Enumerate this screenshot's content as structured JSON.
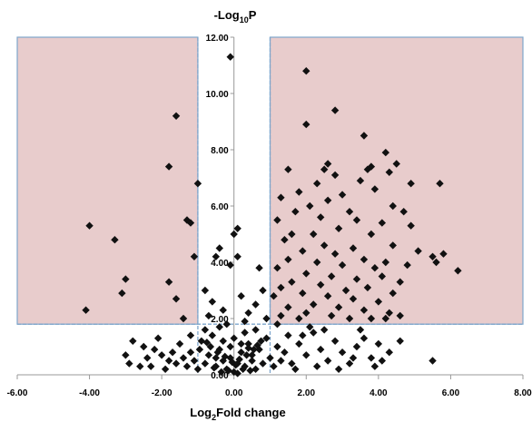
{
  "chart_data": {
    "type": "scatter",
    "title": "",
    "xlabel_main": "Log",
    "xlabel_sub": "2",
    "xlabel_rest": "Fold change",
    "ylabel_prefix": "-Log",
    "ylabel_sub": "10",
    "ylabel_rest": "P",
    "xlim": [
      -6,
      8
    ],
    "ylim": [
      0,
      12
    ],
    "x_ticks": [
      -6,
      -4,
      -2,
      0,
      2,
      4,
      6,
      8
    ],
    "x_tick_labels": [
      "-6.00",
      "-4.00",
      "-2.00",
      "0.00",
      "2.00",
      "4.00",
      "6.00",
      "8.00"
    ],
    "y_ticks": [
      0,
      2,
      4,
      6,
      8,
      10,
      12
    ],
    "y_tick_labels": [
      "0.00",
      "2.00",
      "4.00",
      "6.00",
      "8.00",
      "10.00",
      "12.00"
    ],
    "thresholds": {
      "x_low": -1,
      "x_high": 1,
      "y": 1.8,
      "y_max": 12
    },
    "colors": {
      "marker": "#111111",
      "region_fill": "#e8cccc",
      "threshold_line": "#7ea6cc"
    },
    "series": [
      {
        "marker": "diamond",
        "points": [
          [
            -0.1,
            11.3
          ],
          [
            -1.6,
            9.2
          ],
          [
            -1.8,
            7.4
          ],
          [
            -1.0,
            6.8
          ],
          [
            -1.3,
            5.5
          ],
          [
            -1.2,
            5.4
          ],
          [
            -4.0,
            5.3
          ],
          [
            -3.3,
            4.8
          ],
          [
            -1.1,
            4.2
          ],
          [
            -3.0,
            3.4
          ],
          [
            -1.8,
            3.3
          ],
          [
            -3.1,
            2.9
          ],
          [
            -1.6,
            2.7
          ],
          [
            -4.1,
            2.3
          ],
          [
            -1.4,
            2.0
          ],
          [
            -0.4,
            4.5
          ],
          [
            -0.5,
            4.2
          ],
          [
            -0.1,
            3.9
          ],
          [
            0.1,
            5.2
          ],
          [
            0.0,
            5.0
          ],
          [
            0.1,
            4.2
          ],
          [
            -0.6,
            2.6
          ],
          [
            -0.3,
            2.3
          ],
          [
            0.2,
            2.8
          ],
          [
            0.4,
            2.2
          ],
          [
            0.6,
            2.5
          ],
          [
            0.8,
            3.0
          ],
          [
            -0.8,
            3.0
          ],
          [
            -0.7,
            2.1
          ],
          [
            0.9,
            2.0
          ],
          [
            0.3,
            1.9
          ],
          [
            -0.2,
            1.8
          ],
          [
            0.7,
            3.8
          ],
          [
            2.0,
            10.8
          ],
          [
            2.8,
            9.4
          ],
          [
            2.0,
            8.9
          ],
          [
            3.6,
            8.5
          ],
          [
            4.2,
            7.9
          ],
          [
            2.6,
            7.5
          ],
          [
            2.5,
            7.3
          ],
          [
            3.8,
            7.4
          ],
          [
            4.5,
            7.5
          ],
          [
            4.3,
            7.2
          ],
          [
            1.5,
            7.3
          ],
          [
            3.7,
            7.3
          ],
          [
            2.8,
            7.1
          ],
          [
            2.3,
            6.8
          ],
          [
            3.5,
            6.9
          ],
          [
            4.9,
            6.8
          ],
          [
            5.7,
            6.8
          ],
          [
            3.0,
            6.4
          ],
          [
            1.8,
            6.5
          ],
          [
            2.6,
            6.2
          ],
          [
            3.9,
            6.6
          ],
          [
            4.4,
            6.0
          ],
          [
            1.3,
            6.3
          ],
          [
            2.1,
            6.0
          ],
          [
            3.2,
            5.8
          ],
          [
            4.7,
            5.8
          ],
          [
            1.7,
            5.8
          ],
          [
            2.4,
            5.6
          ],
          [
            3.4,
            5.5
          ],
          [
            1.2,
            5.5
          ],
          [
            2.9,
            5.2
          ],
          [
            4.1,
            5.4
          ],
          [
            2.2,
            5.0
          ],
          [
            1.6,
            5.0
          ],
          [
            3.8,
            5.0
          ],
          [
            4.9,
            5.3
          ],
          [
            1.4,
            4.8
          ],
          [
            2.5,
            4.6
          ],
          [
            3.3,
            4.5
          ],
          [
            4.4,
            4.6
          ],
          [
            5.1,
            4.4
          ],
          [
            1.9,
            4.4
          ],
          [
            2.8,
            4.3
          ],
          [
            3.6,
            4.1
          ],
          [
            4.2,
            4.0
          ],
          [
            5.5,
            4.2
          ],
          [
            5.8,
            4.3
          ],
          [
            1.5,
            4.1
          ],
          [
            2.3,
            4.0
          ],
          [
            3.0,
            3.9
          ],
          [
            3.9,
            3.8
          ],
          [
            4.8,
            3.9
          ],
          [
            5.6,
            4.0
          ],
          [
            6.2,
            3.7
          ],
          [
            1.2,
            3.8
          ],
          [
            2.0,
            3.6
          ],
          [
            2.7,
            3.5
          ],
          [
            3.4,
            3.4
          ],
          [
            4.1,
            3.5
          ],
          [
            4.6,
            3.3
          ],
          [
            1.6,
            3.3
          ],
          [
            2.4,
            3.2
          ],
          [
            3.1,
            3.0
          ],
          [
            3.7,
            3.1
          ],
          [
            4.4,
            2.9
          ],
          [
            1.3,
            3.1
          ],
          [
            1.9,
            2.9
          ],
          [
            2.6,
            2.8
          ],
          [
            3.3,
            2.7
          ],
          [
            4.0,
            2.6
          ],
          [
            1.1,
            2.8
          ],
          [
            2.2,
            2.5
          ],
          [
            2.9,
            2.4
          ],
          [
            3.6,
            2.3
          ],
          [
            4.3,
            2.2
          ],
          [
            1.5,
            2.4
          ],
          [
            2.0,
            2.2
          ],
          [
            2.7,
            2.1
          ],
          [
            3.8,
            2.0
          ],
          [
            4.6,
            2.1
          ],
          [
            1.3,
            2.1
          ],
          [
            3.2,
            2.0
          ],
          [
            4.2,
            2.0
          ],
          [
            1.8,
            2.0
          ],
          [
            -2.8,
            1.2
          ],
          [
            -2.5,
            1.0
          ],
          [
            -2.2,
            0.9
          ],
          [
            -3.0,
            0.7
          ],
          [
            -2.4,
            0.6
          ],
          [
            -2.0,
            0.7
          ],
          [
            -1.8,
            0.5
          ],
          [
            -1.6,
            0.4
          ],
          [
            -1.4,
            0.6
          ],
          [
            -1.3,
            0.3
          ],
          [
            -1.2,
            0.8
          ],
          [
            -1.1,
            0.5
          ],
          [
            -2.6,
            0.3
          ],
          [
            -1.9,
            0.2
          ],
          [
            -1.5,
            1.1
          ],
          [
            -1.0,
            0.2
          ],
          [
            -0.9,
            1.2
          ],
          [
            -0.8,
            0.4
          ],
          [
            -0.7,
            0.7
          ],
          [
            -0.6,
            1.4
          ],
          [
            -0.5,
            0.3
          ],
          [
            -0.4,
            0.9
          ],
          [
            -0.3,
            0.5
          ],
          [
            -0.2,
            0.2
          ],
          [
            -0.1,
            0.6
          ],
          [
            0.0,
            0.1
          ],
          [
            0.1,
            0.4
          ],
          [
            0.2,
            0.8
          ],
          [
            0.3,
            0.3
          ],
          [
            0.4,
            1.1
          ],
          [
            0.5,
            0.5
          ],
          [
            0.6,
            0.2
          ],
          [
            0.7,
            0.9
          ],
          [
            0.8,
            0.4
          ],
          [
            0.9,
            1.3
          ],
          [
            1.0,
            0.6
          ],
          [
            1.1,
            0.3
          ],
          [
            1.2,
            1.0
          ],
          [
            1.3,
            0.5
          ],
          [
            1.4,
            0.8
          ],
          [
            1.5,
            1.4
          ],
          [
            1.6,
            0.4
          ],
          [
            1.8,
            1.1
          ],
          [
            2.0,
            0.7
          ],
          [
            2.2,
            1.5
          ],
          [
            2.4,
            0.9
          ],
          [
            2.6,
            0.5
          ],
          [
            2.8,
            1.2
          ],
          [
            3.0,
            0.8
          ],
          [
            3.2,
            0.4
          ],
          [
            3.4,
            1.0
          ],
          [
            3.6,
            1.3
          ],
          [
            3.8,
            0.6
          ],
          [
            4.0,
            1.1
          ],
          [
            4.3,
            0.8
          ],
          [
            4.6,
            1.2
          ],
          [
            5.5,
            0.5
          ],
          [
            2.1,
            1.7
          ],
          [
            3.5,
            1.6
          ],
          [
            1.2,
            1.8
          ],
          [
            -0.4,
            1.7
          ],
          [
            0.6,
            1.6
          ],
          [
            -1.2,
            1.4
          ],
          [
            -2.1,
            1.3
          ],
          [
            0.3,
            1.5
          ],
          [
            -0.8,
            1.6
          ],
          [
            0.1,
            0.05
          ],
          [
            -0.15,
            0.15
          ],
          [
            0.25,
            0.2
          ],
          [
            -0.35,
            0.1
          ],
          [
            0.45,
            0.15
          ],
          [
            -0.55,
            0.25
          ],
          [
            0.05,
            0.35
          ],
          [
            -0.05,
            0.45
          ],
          [
            0.15,
            0.55
          ],
          [
            -0.25,
            0.65
          ],
          [
            0.35,
            0.7
          ],
          [
            -0.45,
            0.8
          ],
          [
            0.55,
            0.9
          ],
          [
            -0.65,
            1.0
          ],
          [
            0.65,
            1.05
          ],
          [
            -0.75,
            1.15
          ],
          [
            0.75,
            1.2
          ],
          [
            0.0,
            1.3
          ],
          [
            -0.1,
            1.0
          ],
          [
            0.2,
            1.1
          ],
          [
            -0.3,
            1.2
          ],
          [
            0.4,
            0.95
          ],
          [
            -0.5,
            0.6
          ],
          [
            0.5,
            0.7
          ],
          [
            -2.9,
            0.4
          ],
          [
            -2.3,
            0.3
          ],
          [
            -1.7,
            0.8
          ],
          [
            -0.95,
            0.9
          ],
          [
            1.7,
            0.2
          ],
          [
            2.3,
            0.3
          ],
          [
            2.9,
            0.2
          ],
          [
            3.3,
            0.6
          ],
          [
            3.9,
            0.3
          ],
          [
            4.1,
            0.5
          ],
          [
            1.9,
            1.4
          ],
          [
            2.5,
            1.6
          ]
        ]
      }
    ]
  }
}
